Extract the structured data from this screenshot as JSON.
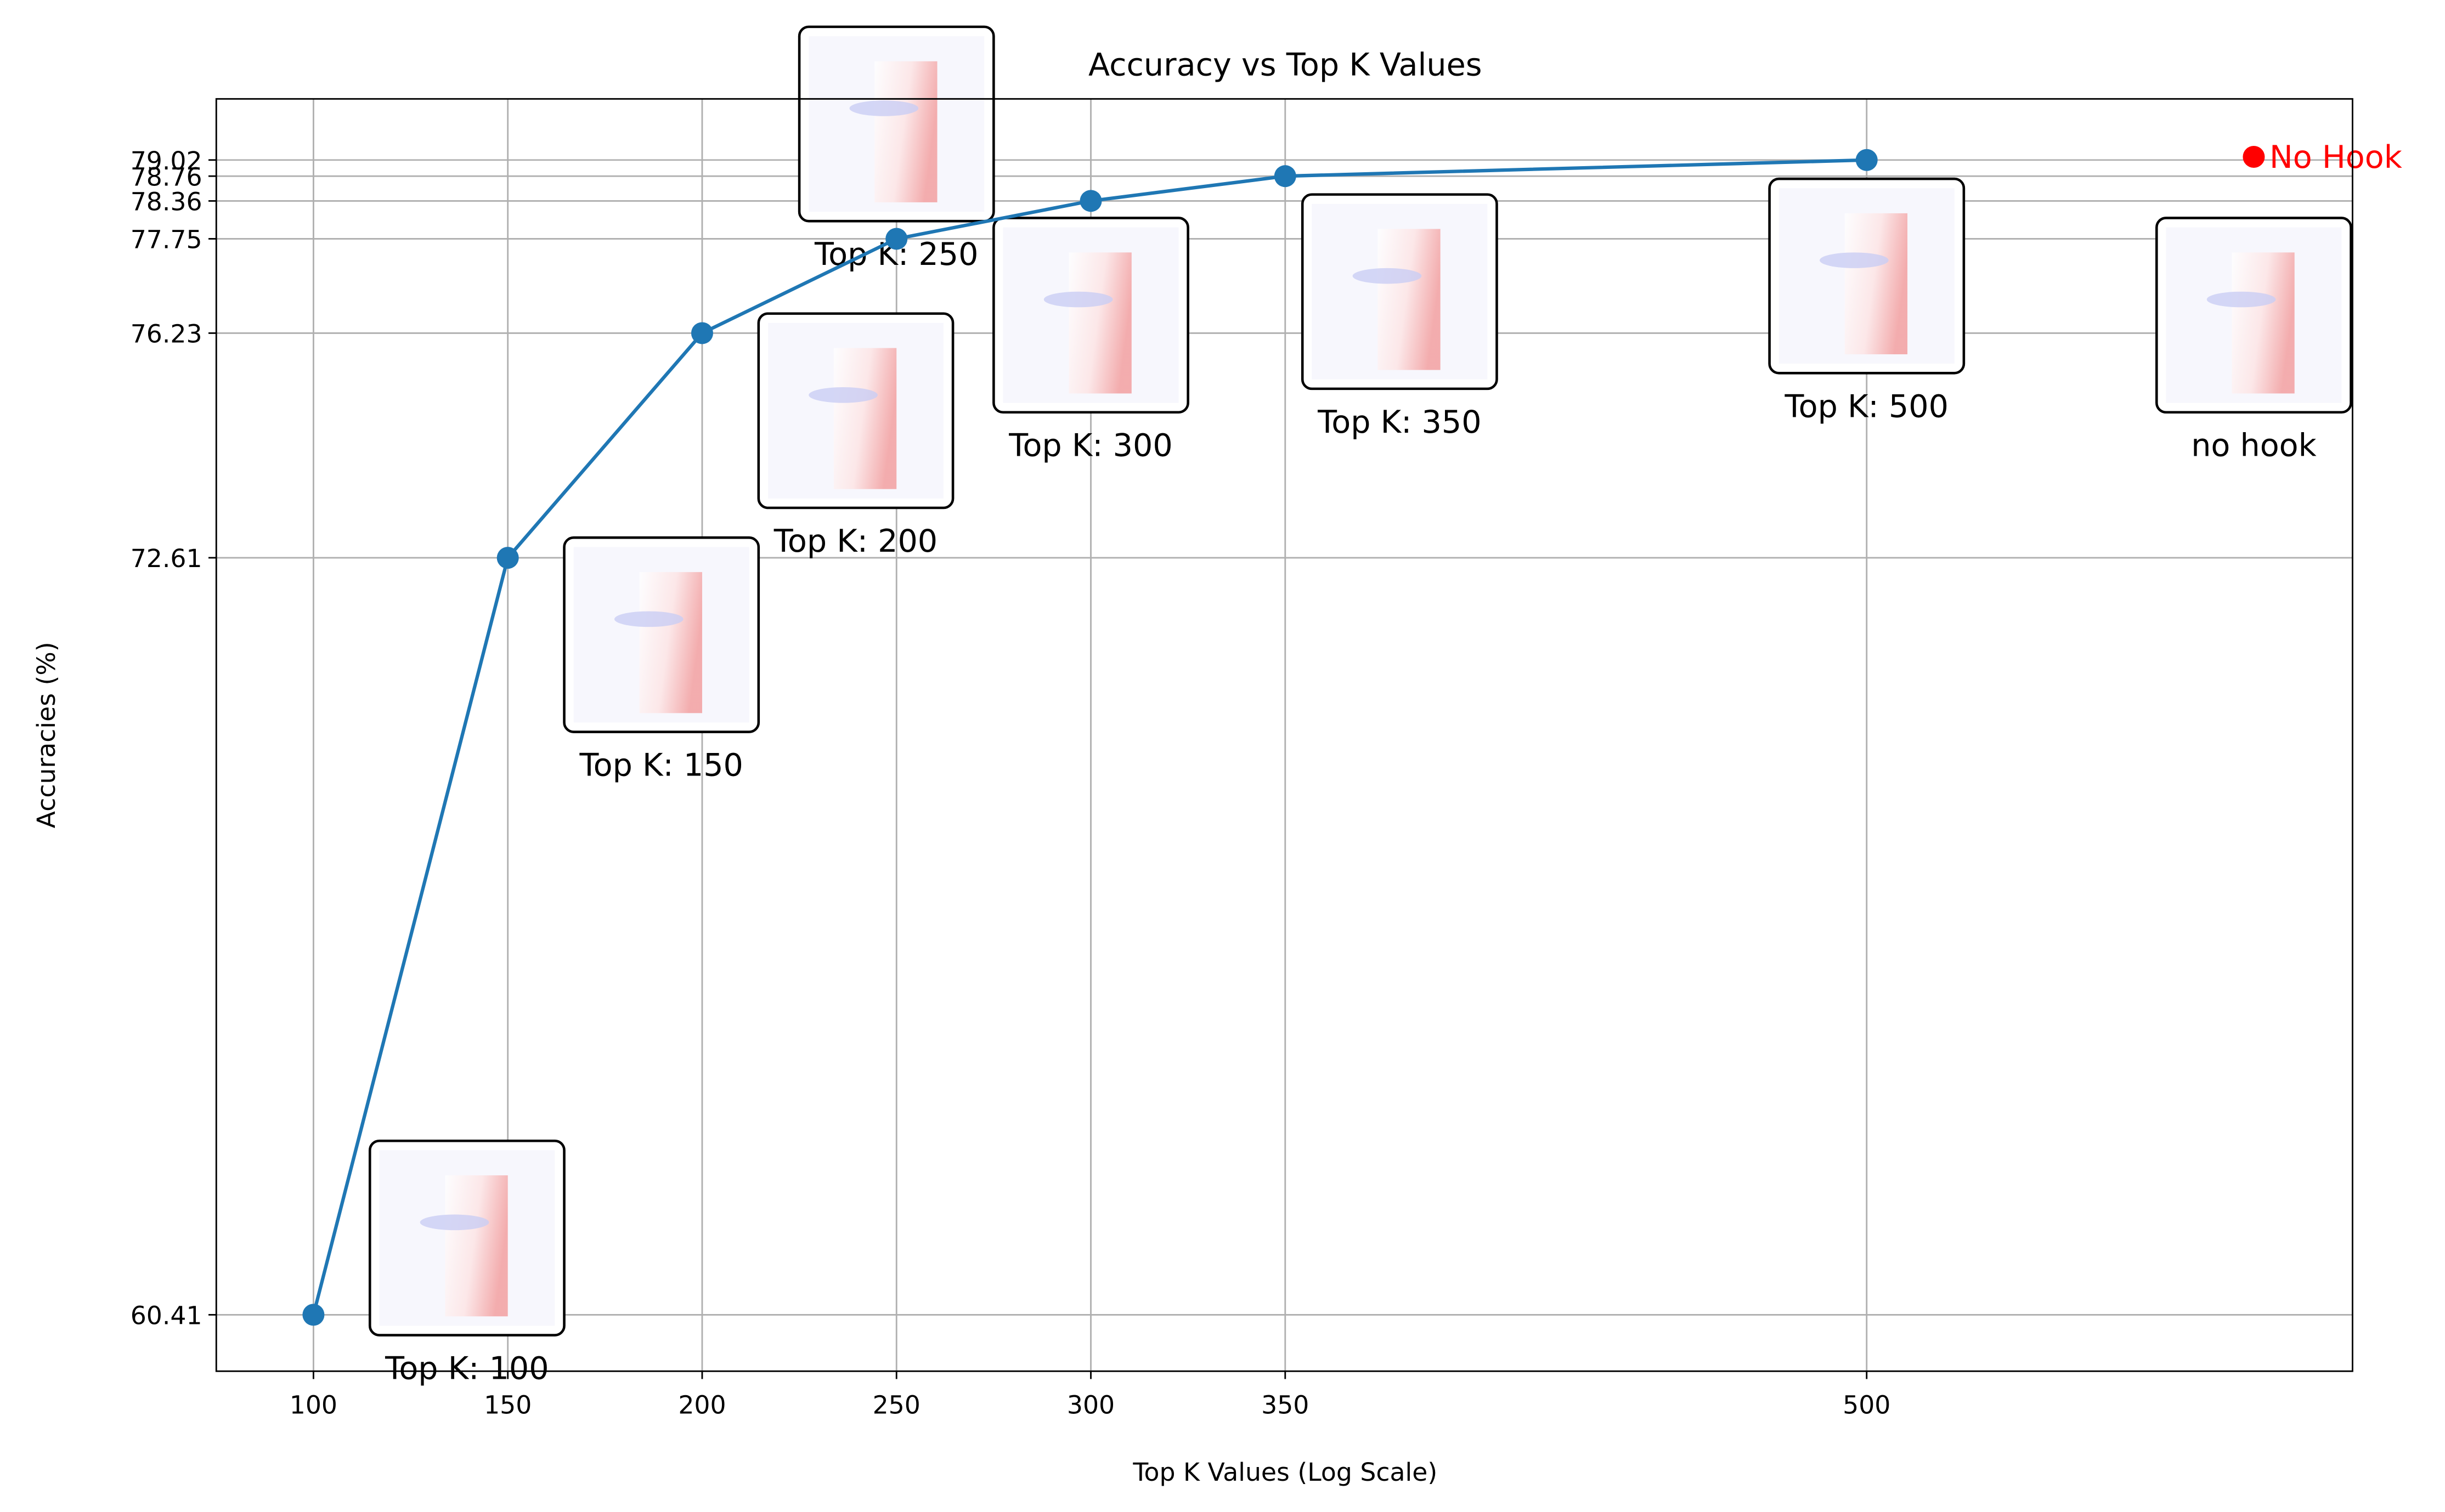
{
  "chart_data": {
    "type": "line",
    "title": "Accuracy vs Top K Values",
    "xlabel": "Top K Values (Log Scale)",
    "ylabel": "Accuracies (%)",
    "x_ticks": [
      "100",
      "150",
      "200",
      "250",
      "300",
      "350",
      "500"
    ],
    "y_ticks": [
      "60.41",
      "72.61",
      "76.23",
      "77.75",
      "78.36",
      "78.76",
      "79.02"
    ],
    "grid": true,
    "series": [
      {
        "color": "#1f77b4",
        "x": [
          100,
          150,
          200,
          250,
          300,
          350,
          500
        ],
        "y": [
          60.41,
          72.61,
          76.23,
          77.75,
          78.36,
          78.76,
          79.02
        ]
      }
    ],
    "reference_point": {
      "label": "No Hook",
      "y": 79.02,
      "color": "#ff0000"
    },
    "thumbnails": [
      {
        "label": "Top K: 100"
      },
      {
        "label": "Top K: 150"
      },
      {
        "label": "Top K: 200"
      },
      {
        "label": "Top K: 250"
      },
      {
        "label": "Top K: 300"
      },
      {
        "label": "Top K: 350"
      },
      {
        "label": "Top K: 500"
      },
      {
        "label": "no hook"
      }
    ]
  }
}
